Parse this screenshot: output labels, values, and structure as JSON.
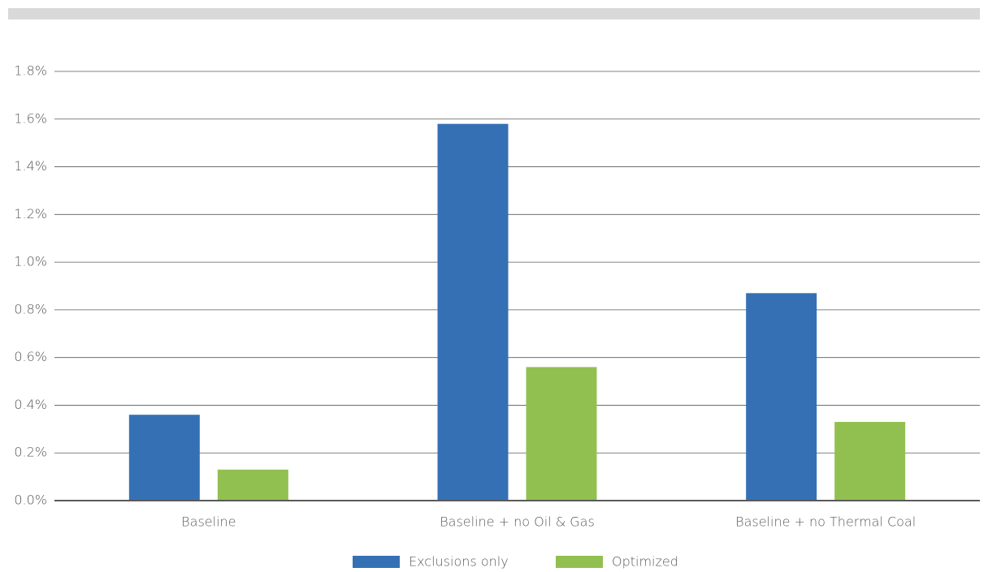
{
  "chart_data": {
    "type": "bar",
    "categories": [
      "Baseline",
      "Baseline + no Oil & Gas",
      "Baseline + no Thermal Coal"
    ],
    "series": [
      {
        "name": "Exclusions only",
        "color": "#3570b5",
        "values": [
          0.36,
          1.58,
          0.87
        ]
      },
      {
        "name": "Optimized",
        "color": "#92c050",
        "values": [
          0.13,
          0.56,
          0.33
        ]
      }
    ],
    "ylim": [
      0,
      1.8
    ],
    "yticks": [
      {
        "value": 0,
        "label": "0.0%"
      },
      {
        "value": 0.2,
        "label": "0.2%"
      },
      {
        "value": 0.4,
        "label": "0.4%"
      },
      {
        "value": 0.6,
        "label": "0.6%"
      },
      {
        "value": 0.8,
        "label": "0.8%"
      },
      {
        "value": 1.0,
        "label": "1.0%"
      },
      {
        "value": 1.2,
        "label": "1.2%"
      },
      {
        "value": 1.4,
        "label": "1.4%"
      },
      {
        "value": 1.6,
        "label": "1.6%"
      },
      {
        "value": 1.8,
        "label": "1.8%"
      }
    ],
    "grid": true,
    "legend": "bottom"
  }
}
